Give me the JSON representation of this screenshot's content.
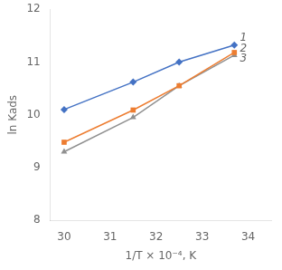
{
  "chart_data": {
    "type": "line",
    "xlabel": "1/T × 10⁻⁴, K",
    "ylabel": "ln Kads",
    "series": [
      {
        "name": "1",
        "color": "#4472C4",
        "marker": "diamond",
        "x": [
          30,
          31.5,
          32.5,
          33.7
        ],
        "values": [
          10.1,
          10.62,
          11.0,
          11.32
        ]
      },
      {
        "name": "2",
        "color": "#ED7D31",
        "marker": "square",
        "x": [
          30,
          31.5,
          32.5,
          33.7
        ],
        "values": [
          9.48,
          10.09,
          10.55,
          11.18
        ]
      },
      {
        "name": "3",
        "color": "#909090",
        "marker": "triangle",
        "x": [
          30,
          31.5,
          32.5,
          33.7
        ],
        "values": [
          9.3,
          9.95,
          10.55,
          11.13
        ]
      }
    ],
    "xlim": [
      29.7,
      34.5
    ],
    "ylim": [
      8,
      12
    ],
    "xticks": [
      30,
      31,
      32,
      33,
      34
    ],
    "yticks": [
      8,
      9,
      10,
      11,
      12
    ],
    "grid": false,
    "annotations": [
      {
        "text": "1",
        "x": 33.82,
        "y": 11.45
      },
      {
        "text": "2",
        "x": 33.82,
        "y": 11.25
      },
      {
        "text": "3",
        "x": 33.82,
        "y": 11.06
      }
    ]
  }
}
